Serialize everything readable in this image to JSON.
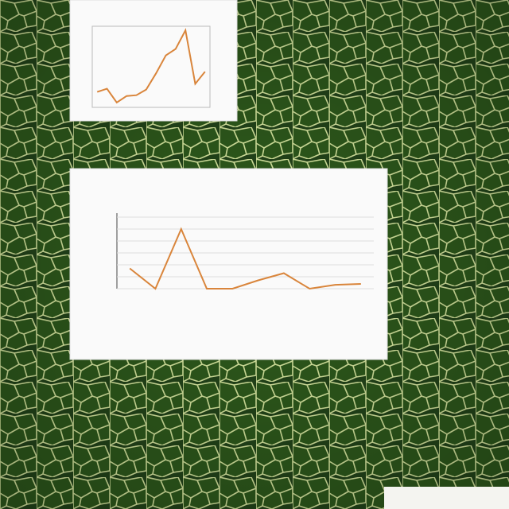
{
  "charts": [
    {
      "type": "line",
      "color": "#d9853b",
      "values": [
        19,
        23,
        6,
        14,
        15,
        22,
        42,
        64,
        72,
        95,
        29,
        44
      ],
      "ylim": [
        0,
        100
      ],
      "grid": false
    },
    {
      "type": "line",
      "color": "#d9853b",
      "values": [
        1700,
        0,
        5000,
        0,
        0,
        700,
        1300,
        0,
        330,
        400
      ],
      "ylim": [
        0,
        6000
      ],
      "yticks": [
        0,
        1000,
        2000,
        3000,
        4000,
        5000,
        6000
      ],
      "grid": true
    }
  ]
}
